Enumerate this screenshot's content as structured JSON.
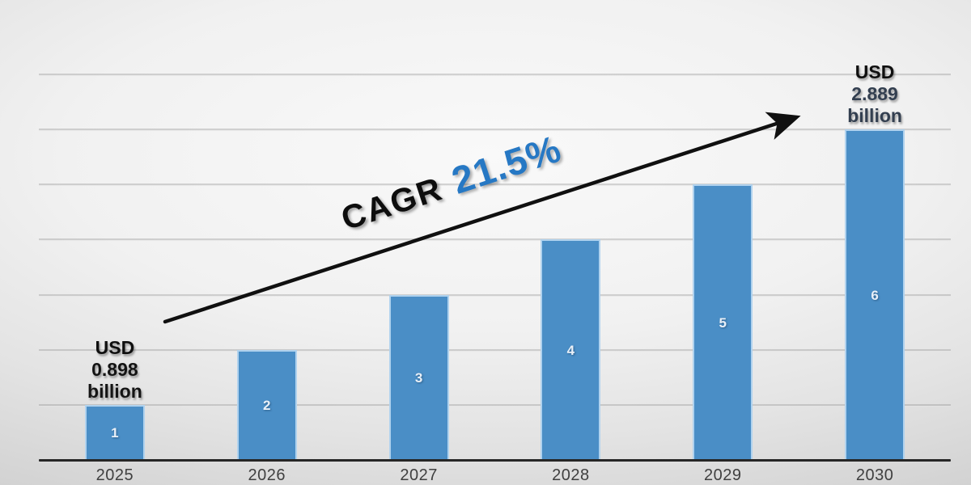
{
  "chart_data": {
    "type": "bar",
    "title": "",
    "xlabel": "",
    "ylabel": "",
    "categories": [
      "2025",
      "2026",
      "2027",
      "2028",
      "2029",
      "2030"
    ],
    "values": [
      1,
      2,
      3,
      4,
      5,
      6
    ],
    "bar_labels": [
      "1",
      "2",
      "3",
      "4",
      "5",
      "6"
    ],
    "ylim": [
      0,
      7
    ],
    "gridline_values": [
      1,
      2,
      3,
      4,
      5,
      6,
      7
    ],
    "y_axis_tick_labels": "none",
    "grid": "horizontal",
    "legend": "off",
    "bar_color": "#4a8ec6",
    "bar_border_color": "#b0d2ee",
    "bar_value_color": "#e9f0f8",
    "axis_color": "#262626",
    "x_label_color": "#404040",
    "annotations": [
      {
        "category": "2025",
        "lines": [
          {
            "text": "USD",
            "color": "#0f0f0f"
          },
          {
            "text": "0.898",
            "color": "#141414"
          },
          {
            "text": "billion",
            "color": "#141414"
          }
        ]
      },
      {
        "category": "2030",
        "lines": [
          {
            "text": "USD",
            "color": "#0f0f0f"
          },
          {
            "text": "2.889",
            "color": "#333f50"
          },
          {
            "text": "billion",
            "color": "#333f50"
          }
        ]
      }
    ],
    "cagr": {
      "prefix": "CAGR",
      "value": "21.5%",
      "prefix_color": "#0d0d0d",
      "value_color": "#2678c4"
    }
  }
}
